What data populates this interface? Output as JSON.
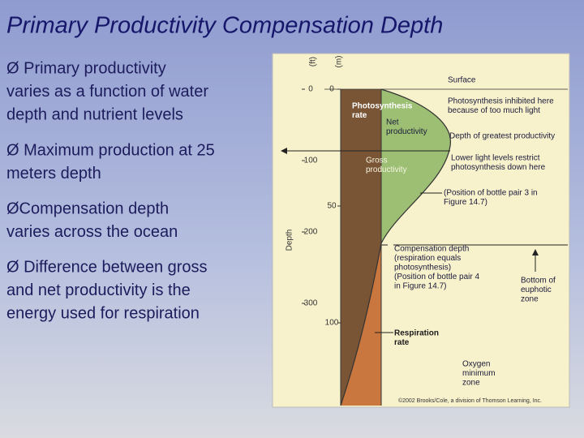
{
  "header": {
    "title": "Primary Productivity Compensation Depth"
  },
  "bullets": [
    [
      "Ø Primary productivity",
      "varies as a function of water",
      "depth and nutrient levels"
    ],
    [
      "Ø Maximum production at 25",
      "meters depth"
    ],
    [
      "ØCompensation depth",
      "varies across the ocean"
    ],
    [
      "Ø Difference between gross",
      "and net productivity is the",
      "energy used for respiration"
    ]
  ],
  "figure": {
    "axis_feet_label": "(ft)",
    "axis_meters_label": "(m)",
    "axis_label": "Depth",
    "feet_ticks": [
      0,
      100,
      200,
      300
    ],
    "meter_ticks": [
      0,
      50,
      100
    ],
    "surface": "Surface",
    "photosynthesis_rate": [
      "Photosynthesis",
      "rate"
    ],
    "net_productivity": [
      "Net",
      "productivity"
    ],
    "gross_productivity": [
      "Gross",
      "productivity"
    ],
    "inhibited": [
      "Photosynthesis inhibited here",
      "because of too much light"
    ],
    "greatest": "Depth of greatest productivity",
    "lower_light": [
      "Lower light levels restrict",
      "photosynthesis down here"
    ],
    "bottle3": [
      "(Position of bottle pair 3 in",
      "Figure 14.7)"
    ],
    "compensation": [
      "Compensation depth",
      "(respiration equals",
      "photosynthesis)",
      "(Position of bottle pair 4",
      "in Figure 14.7)"
    ],
    "euphotic": [
      "Bottom of",
      "euphotic",
      "zone"
    ],
    "respiration_rate": [
      "Respiration",
      "rate"
    ],
    "oxygen": [
      "Oxygen",
      "minimum",
      "zone"
    ],
    "copyright": "©2002 Brooks/Cole, a division of Thomson Learning, Inc."
  }
}
